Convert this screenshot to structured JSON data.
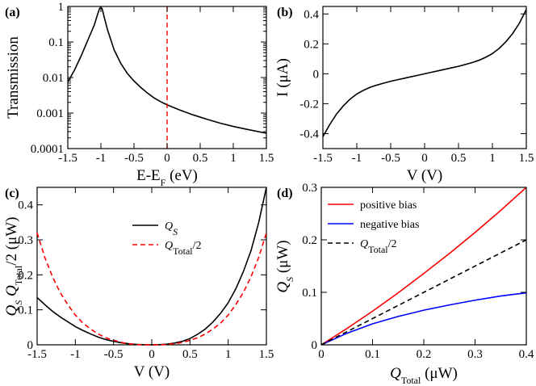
{
  "chart_data": [
    {
      "id": "a",
      "type": "line",
      "panel_label": "(a)",
      "xlabel": "E-E",
      "xlabel_sub": "F",
      "xlabel_unit": " (eV)",
      "ylabel": "Transmission",
      "yscale": "log",
      "xlim": [
        -1.5,
        1.5
      ],
      "ylim": [
        0.0001,
        1
      ],
      "x_ticks": [
        -1.5,
        -1,
        -0.5,
        0,
        0.5,
        1,
        1.5
      ],
      "x_tick_labels": [
        "-1.5",
        "-1",
        "-0.5",
        "0",
        "0.5",
        "1",
        "1.5"
      ],
      "y_ticks": [
        0.0001,
        0.001,
        0.01,
        0.1,
        1
      ],
      "y_tick_labels": [
        "0.0001",
        "0.001",
        "0.01",
        "0.1",
        "1"
      ],
      "series": [
        {
          "name": "Transmission",
          "color": "#000000",
          "style": "solid",
          "x": [
            -1.5,
            -1.4,
            -1.3,
            -1.2,
            -1.1,
            -1.05,
            -1.02,
            -1.0,
            -0.98,
            -0.95,
            -0.9,
            -0.8,
            -0.7,
            -0.6,
            -0.5,
            -0.4,
            -0.3,
            -0.2,
            -0.1,
            0.0,
            0.2,
            0.4,
            0.6,
            0.8,
            1.0,
            1.2,
            1.5
          ],
          "y": [
            0.0075,
            0.016,
            0.04,
            0.11,
            0.3,
            0.6,
            0.88,
            0.95,
            0.85,
            0.5,
            0.22,
            0.06,
            0.025,
            0.013,
            0.008,
            0.0053,
            0.0037,
            0.0027,
            0.0021,
            0.0017,
            0.0012,
            0.00088,
            0.00067,
            0.00052,
            0.00042,
            0.00035,
            0.00027
          ]
        }
      ],
      "annotations": [
        {
          "type": "vline",
          "x": 0,
          "color": "#ff0000",
          "style": "dashed"
        }
      ]
    },
    {
      "id": "b",
      "type": "line",
      "panel_label": "(b)",
      "xlabel": "V (V)",
      "ylabel": "I (μA)",
      "xlim": [
        -1.5,
        1.5
      ],
      "ylim": [
        -0.5,
        0.45
      ],
      "x_ticks": [
        -1.5,
        -1,
        -0.5,
        0,
        0.5,
        1,
        1.5
      ],
      "x_tick_labels": [
        "-1.5",
        "-1",
        "-0.5",
        "0",
        "0.5",
        "1",
        "1.5"
      ],
      "y_ticks": [
        -0.4,
        -0.2,
        0,
        0.2,
        0.4
      ],
      "y_tick_labels": [
        "-0.4",
        "-0.2",
        "0",
        "0.2",
        "0.4"
      ],
      "series": [
        {
          "name": "I-V",
          "color": "#000000",
          "style": "solid",
          "x": [
            -1.5,
            -1.4,
            -1.3,
            -1.2,
            -1.1,
            -1.0,
            -0.9,
            -0.8,
            -0.7,
            -0.6,
            -0.5,
            -0.4,
            -0.3,
            -0.2,
            -0.1,
            0.0,
            0.1,
            0.2,
            0.3,
            0.4,
            0.5,
            0.6,
            0.7,
            0.8,
            0.9,
            1.0,
            1.1,
            1.2,
            1.3,
            1.4,
            1.5
          ],
          "y": [
            -0.42,
            -0.34,
            -0.27,
            -0.215,
            -0.17,
            -0.135,
            -0.11,
            -0.09,
            -0.075,
            -0.062,
            -0.05,
            -0.04,
            -0.03,
            -0.02,
            -0.01,
            0.0,
            0.01,
            0.02,
            0.03,
            0.04,
            0.05,
            0.062,
            0.075,
            0.09,
            0.11,
            0.135,
            0.17,
            0.215,
            0.27,
            0.34,
            0.43
          ]
        }
      ]
    },
    {
      "id": "c",
      "type": "line",
      "panel_label": "(c)",
      "xlabel": "V (V)",
      "ylabel_parts": [
        "Q",
        "S",
        " Q",
        "Total",
        "/2 (μW)"
      ],
      "xlim": [
        -1.5,
        1.5
      ],
      "ylim": [
        0,
        0.45
      ],
      "x_ticks": [
        -1.5,
        -1,
        -0.5,
        0,
        0.5,
        1,
        1.5
      ],
      "x_tick_labels": [
        "-1.5",
        "-1",
        "-0.5",
        "0",
        "0.5",
        "1",
        "1.5"
      ],
      "y_ticks": [
        0,
        0.1,
        0.2,
        0.3,
        0.4
      ],
      "y_tick_labels": [
        "0",
        "0.1",
        "0.2",
        "0.3",
        "0.4"
      ],
      "legend": {
        "position": "top-center",
        "entries": [
          {
            "label": "Q",
            "sub": "S",
            "suffix": ""
          },
          {
            "label": "Q",
            "sub": "Total",
            "suffix": "/2"
          }
        ]
      },
      "series": [
        {
          "name": "Q_S",
          "color": "#000000",
          "style": "solid",
          "x": [
            -1.5,
            -1.4,
            -1.3,
            -1.2,
            -1.1,
            -1.0,
            -0.9,
            -0.8,
            -0.7,
            -0.6,
            -0.5,
            -0.4,
            -0.3,
            -0.2,
            -0.1,
            0.0,
            0.1,
            0.2,
            0.3,
            0.4,
            0.5,
            0.6,
            0.7,
            0.8,
            0.9,
            1.0,
            1.1,
            1.2,
            1.3,
            1.4,
            1.5
          ],
          "y": [
            0.135,
            0.115,
            0.096,
            0.08,
            0.066,
            0.052,
            0.041,
            0.031,
            0.022,
            0.015,
            0.01,
            0.006,
            0.003,
            0.001,
            0.0002,
            0.0,
            0.0004,
            0.002,
            0.005,
            0.01,
            0.018,
            0.03,
            0.045,
            0.065,
            0.09,
            0.12,
            0.16,
            0.21,
            0.27,
            0.35,
            0.45
          ]
        },
        {
          "name": "Q_Total/2",
          "color": "#ff0000",
          "style": "dashed",
          "x": [
            -1.5,
            -1.4,
            -1.3,
            -1.2,
            -1.1,
            -1.0,
            -0.9,
            -0.8,
            -0.7,
            -0.6,
            -0.5,
            -0.4,
            -0.3,
            -0.2,
            -0.1,
            0.0,
            0.1,
            0.2,
            0.3,
            0.4,
            0.5,
            0.6,
            0.7,
            0.8,
            0.9,
            1.0,
            1.1,
            1.2,
            1.3,
            1.4,
            1.5
          ],
          "y": [
            0.32,
            0.25,
            0.195,
            0.15,
            0.115,
            0.085,
            0.062,
            0.045,
            0.031,
            0.02,
            0.013,
            0.007,
            0.003,
            0.001,
            0.0002,
            0.0,
            0.0002,
            0.001,
            0.003,
            0.007,
            0.013,
            0.02,
            0.031,
            0.045,
            0.062,
            0.085,
            0.115,
            0.15,
            0.195,
            0.25,
            0.32
          ]
        }
      ]
    },
    {
      "id": "d",
      "type": "line",
      "panel_label": "(d)",
      "xlabel_parts": [
        "Q",
        "Total",
        " (μW)"
      ],
      "ylabel_parts": [
        "Q",
        "S",
        " (μW)"
      ],
      "xlim": [
        0,
        0.4
      ],
      "ylim": [
        0,
        0.3
      ],
      "x_ticks": [
        0,
        0.1,
        0.2,
        0.3,
        0.4
      ],
      "x_tick_labels": [
        "0",
        "0.1",
        "0.2",
        "0.3",
        "0.4"
      ],
      "y_ticks": [
        0,
        0.1,
        0.2,
        0.3
      ],
      "y_tick_labels": [
        "0",
        "0.1",
        "0.2",
        "0.3"
      ],
      "legend": {
        "position": "top-left",
        "entries": [
          {
            "label": "positive bias",
            "sub": "",
            "suffix": ""
          },
          {
            "label": "negative bias",
            "sub": "",
            "suffix": ""
          },
          {
            "label": "Q",
            "sub": "Total",
            "suffix": "/2"
          }
        ]
      },
      "series": [
        {
          "name": "positive bias",
          "color": "#ff0000",
          "style": "solid",
          "x": [
            0,
            0.05,
            0.1,
            0.15,
            0.2,
            0.25,
            0.3,
            0.35,
            0.4
          ],
          "y": [
            0,
            0.031,
            0.064,
            0.099,
            0.136,
            0.174,
            0.214,
            0.256,
            0.3
          ]
        },
        {
          "name": "negative bias",
          "color": "#0000ff",
          "style": "solid",
          "x": [
            0,
            0.05,
            0.1,
            0.15,
            0.2,
            0.25,
            0.3,
            0.35,
            0.4
          ],
          "y": [
            0,
            0.022,
            0.04,
            0.054,
            0.066,
            0.076,
            0.085,
            0.093,
            0.099
          ]
        },
        {
          "name": "Q_Total/2",
          "color": "#000000",
          "style": "dashed",
          "x": [
            0,
            0.4
          ],
          "y": [
            0,
            0.2
          ]
        }
      ]
    }
  ]
}
